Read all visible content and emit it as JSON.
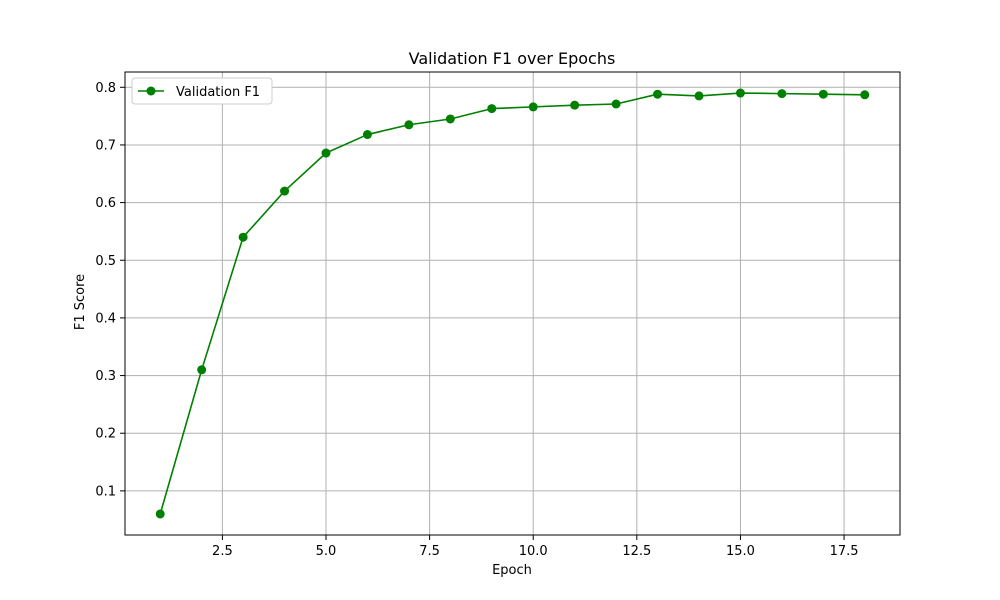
{
  "chart_data": {
    "type": "line",
    "title": "Validation F1 over Epochs",
    "xlabel": "Epoch",
    "ylabel": "F1 Score",
    "xlim": [
      0.15,
      18.85
    ],
    "ylim": [
      0.0235,
      0.8265
    ],
    "xticks": [
      2.5,
      5.0,
      7.5,
      10.0,
      12.5,
      15.0,
      17.5
    ],
    "xtick_labels": [
      "2.5",
      "5.0",
      "7.5",
      "10.0",
      "12.5",
      "15.0",
      "17.5"
    ],
    "yticks": [
      0.1,
      0.2,
      0.3,
      0.4,
      0.5,
      0.6,
      0.7,
      0.8
    ],
    "ytick_labels": [
      "0.1",
      "0.2",
      "0.3",
      "0.4",
      "0.5",
      "0.6",
      "0.7",
      "0.8"
    ],
    "grid": true,
    "legend_position": "top-left",
    "x": [
      1,
      2,
      3,
      4,
      5,
      6,
      7,
      8,
      9,
      10,
      11,
      12,
      13,
      14,
      15,
      16,
      17,
      18
    ],
    "series": [
      {
        "name": "Validation F1",
        "color": "#008000",
        "marker": "circle",
        "values": [
          0.06,
          0.31,
          0.54,
          0.62,
          0.686,
          0.718,
          0.735,
          0.745,
          0.763,
          0.766,
          0.769,
          0.771,
          0.788,
          0.785,
          0.79,
          0.789,
          0.788,
          0.787
        ]
      }
    ]
  }
}
